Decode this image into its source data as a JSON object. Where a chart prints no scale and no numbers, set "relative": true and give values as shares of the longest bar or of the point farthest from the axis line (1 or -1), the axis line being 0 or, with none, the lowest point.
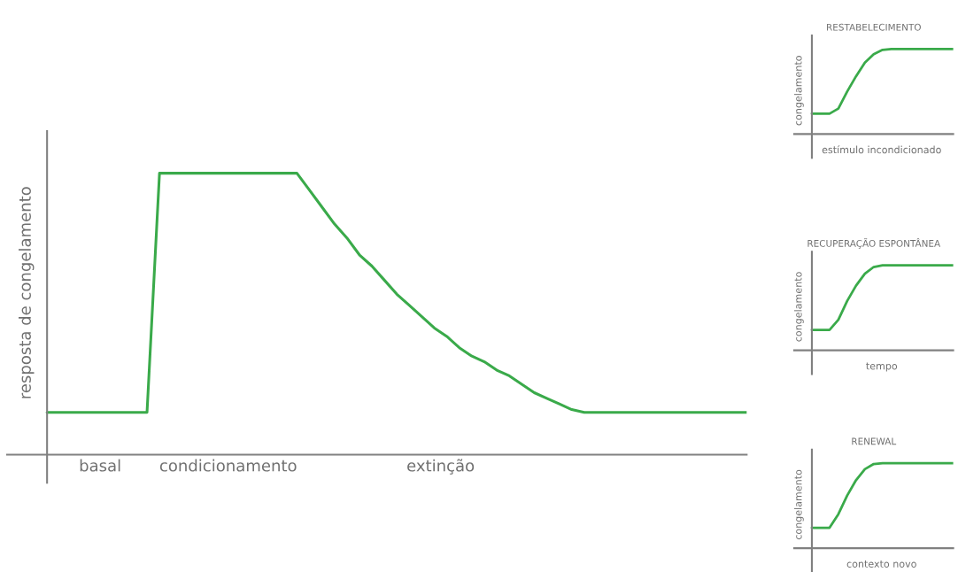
{
  "chart_data": [
    {
      "type": "line",
      "relative": true,
      "ylabel": "resposta de congelamento",
      "annotations": [
        "basal",
        "condicionamento",
        "extinção"
      ],
      "categories": [
        null,
        null,
        null,
        null,
        null,
        null,
        null,
        null,
        null,
        null,
        null,
        null,
        null,
        null,
        null,
        null,
        null,
        null,
        null,
        null,
        null,
        null,
        null,
        null,
        null,
        null,
        null,
        null,
        null,
        null,
        null,
        null,
        null,
        null,
        null,
        null,
        null,
        null,
        null,
        null,
        null,
        null,
        null,
        null,
        null,
        null,
        null,
        null,
        null,
        null,
        null,
        null,
        null,
        null,
        null,
        null,
        null
      ],
      "series": [
        {
          "color": "#3aaa4a",
          "values": [
            0.15,
            0.15,
            0.15,
            0.15,
            0.15,
            0.15,
            0.15,
            0.15,
            0.15,
            1,
            1,
            1,
            1,
            1,
            1,
            1,
            1,
            1,
            1,
            1,
            1,
            0.94,
            0.88,
            0.82,
            0.77,
            0.71,
            0.67,
            0.62,
            0.57,
            0.53,
            0.49,
            0.45,
            0.42,
            0.38,
            0.35,
            0.33,
            0.3,
            0.28,
            0.25,
            0.22,
            0.2,
            0.18,
            0.16,
            0.15,
            0.15,
            0.15,
            0.15,
            0.15,
            0.15,
            0.15,
            0.15,
            0.15,
            0.15,
            0.15,
            0.15,
            0.15,
            0.15
          ]
        }
      ]
    },
    {
      "type": "line",
      "relative": true,
      "title": "RESTABELECIMENTO",
      "xlabel": "estímulo incondicionado",
      "ylabel": "congelamento",
      "categories": [
        null,
        null,
        null,
        null,
        null,
        null,
        null,
        null,
        null,
        null,
        null,
        null,
        null,
        null,
        null,
        null,
        null
      ],
      "series": [
        {
          "color": "#3aaa4a",
          "values": [
            0.24,
            0.24,
            0.24,
            0.3,
            0.5,
            0.68,
            0.84,
            0.94,
            0.99,
            1,
            1,
            1,
            1,
            1,
            1,
            1,
            1
          ]
        }
      ]
    },
    {
      "type": "line",
      "relative": true,
      "title": "RECUPERAÇÃO ESPONTÂNEA",
      "xlabel": "tempo",
      "ylabel": "congelamento",
      "categories": [
        null,
        null,
        null,
        null,
        null,
        null,
        null,
        null,
        null,
        null,
        null,
        null,
        null,
        null,
        null,
        null,
        null
      ],
      "series": [
        {
          "color": "#3aaa4a",
          "values": [
            0.24,
            0.24,
            0.24,
            0.36,
            0.58,
            0.76,
            0.9,
            0.98,
            1,
            1,
            1,
            1,
            1,
            1,
            1,
            1,
            1
          ]
        }
      ]
    },
    {
      "type": "line",
      "relative": true,
      "title": "RENEWAL",
      "xlabel": "contexto novo",
      "ylabel": "congelamento",
      "categories": [
        null,
        null,
        null,
        null,
        null,
        null,
        null,
        null,
        null,
        null,
        null,
        null,
        null,
        null,
        null,
        null,
        null
      ],
      "series": [
        {
          "color": "#3aaa4a",
          "values": [
            0.24,
            0.24,
            0.24,
            0.4,
            0.62,
            0.8,
            0.93,
            0.99,
            1,
            1,
            1,
            1,
            1,
            1,
            1,
            1,
            1
          ]
        }
      ]
    }
  ]
}
